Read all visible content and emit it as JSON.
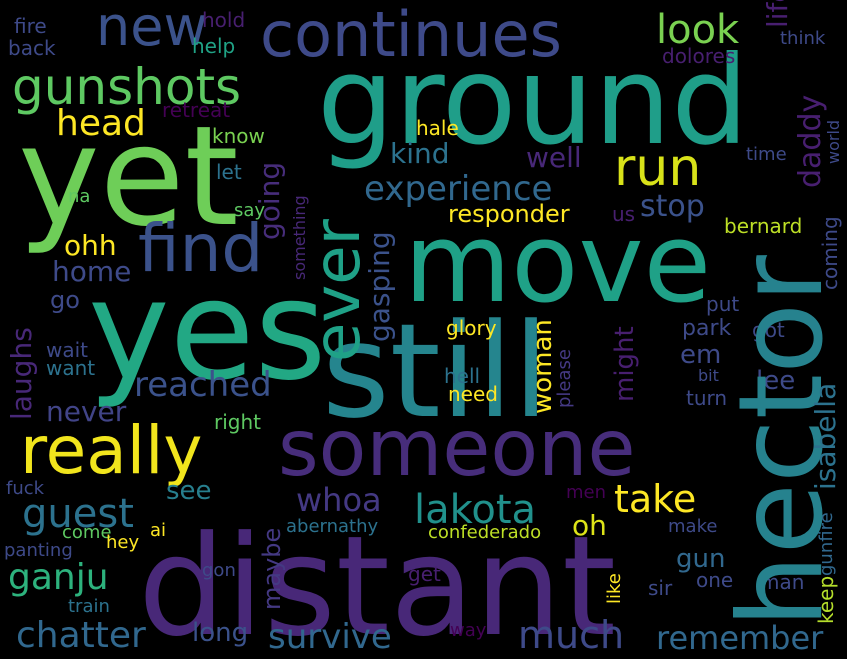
{
  "words": [
    {
      "text": "ground",
      "color": "#1f9e89"
    },
    {
      "text": "hector",
      "color": "#26828e"
    },
    {
      "text": "yet",
      "color": "#6ece58"
    },
    {
      "text": "distant",
      "color": "#482878"
    },
    {
      "text": "yes",
      "color": "#22a884"
    },
    {
      "text": "move",
      "color": "#1fa187"
    },
    {
      "text": "still",
      "color": "#25858e"
    },
    {
      "text": "someone",
      "color": "#472d7b"
    },
    {
      "text": "continues",
      "color": "#3e4a89"
    },
    {
      "text": "new",
      "color": "#3b528b"
    },
    {
      "text": "find",
      "color": "#3b528b"
    },
    {
      "text": "really",
      "color": "#f1e51d"
    },
    {
      "text": "gunshots",
      "color": "#5ec962"
    },
    {
      "text": "ever",
      "color": "#1fa187"
    },
    {
      "text": "run",
      "color": "#d8e219"
    },
    {
      "text": "look",
      "color": "#7ad151"
    },
    {
      "text": "experience",
      "color": "#31688e"
    },
    {
      "text": "head",
      "color": "#fde725"
    },
    {
      "text": "guest",
      "color": "#2c728e"
    },
    {
      "text": "lakota",
      "color": "#21918c"
    },
    {
      "text": "whoa",
      "color": "#443983"
    },
    {
      "text": "take",
      "color": "#fde725"
    },
    {
      "text": "ganju",
      "color": "#2db27d"
    },
    {
      "text": "chatter",
      "color": "#31688e"
    },
    {
      "text": "survive",
      "color": "#31688e"
    },
    {
      "text": "much",
      "color": "#3e4a89"
    },
    {
      "text": "remember",
      "color": "#31688e"
    },
    {
      "text": "reached",
      "color": "#3b528b"
    },
    {
      "text": "responder",
      "color": "#fde725"
    },
    {
      "text": "stop",
      "color": "#3b528b"
    },
    {
      "text": "gasping",
      "color": "#3b528b"
    },
    {
      "text": "kind",
      "color": "#2c728e"
    },
    {
      "text": "well",
      "color": "#482878"
    },
    {
      "text": "daddy",
      "color": "#481f70"
    },
    {
      "text": "isabella",
      "color": "#2c728e"
    },
    {
      "text": "life",
      "color": "#481f70"
    },
    {
      "text": "going",
      "color": "#472d7b"
    },
    {
      "text": "laughs",
      "color": "#482878"
    },
    {
      "text": "woman",
      "color": "#fde725"
    },
    {
      "text": "might",
      "color": "#481f70"
    },
    {
      "text": "never",
      "color": "#414487"
    },
    {
      "text": "home",
      "color": "#3e4a89"
    },
    {
      "text": "ohh",
      "color": "#fde725"
    },
    {
      "text": "oh",
      "color": "#dde318"
    },
    {
      "text": "em",
      "color": "#3e4a89"
    },
    {
      "text": "lee",
      "color": "#3e4a89"
    },
    {
      "text": "see",
      "color": "#277f8e"
    },
    {
      "text": "gun",
      "color": "#31688e"
    },
    {
      "text": "maybe",
      "color": "#443983"
    },
    {
      "text": "long",
      "color": "#3b528b"
    },
    {
      "text": "park",
      "color": "#3e4a89"
    },
    {
      "text": "bernard",
      "color": "#bddf26"
    },
    {
      "text": "coming",
      "color": "#3e4a89"
    },
    {
      "text": "gunfire",
      "color": "#31688e"
    },
    {
      "text": "keep",
      "color": "#b5de2b"
    },
    {
      "text": "go",
      "color": "#3e4a89"
    },
    {
      "text": "wait",
      "color": "#3e4a89"
    },
    {
      "text": "want",
      "color": "#2c728e"
    },
    {
      "text": "hell",
      "color": "#2c728e"
    },
    {
      "text": "need",
      "color": "#fde725"
    },
    {
      "text": "right",
      "color": "#5ec962"
    },
    {
      "text": "turn",
      "color": "#3e4a89"
    },
    {
      "text": "bit",
      "color": "#3e4a89"
    },
    {
      "text": "please",
      "color": "#443983"
    },
    {
      "text": "glory",
      "color": "#fde725"
    },
    {
      "text": "put",
      "color": "#3e4a89"
    },
    {
      "text": "got",
      "color": "#3e4a89"
    },
    {
      "text": "us",
      "color": "#481f70"
    },
    {
      "text": "let",
      "color": "#2c728e"
    },
    {
      "text": "say",
      "color": "#5ec962"
    },
    {
      "text": "na",
      "color": "#5ec962"
    },
    {
      "text": "something",
      "color": "#482878"
    },
    {
      "text": "know",
      "color": "#7ad151"
    },
    {
      "text": "hale",
      "color": "#fde725"
    },
    {
      "text": "retreat",
      "color": "#440154"
    },
    {
      "text": "help",
      "color": "#20a386"
    },
    {
      "text": "hold",
      "color": "#481f70"
    },
    {
      "text": "fire",
      "color": "#3e4a89"
    },
    {
      "text": "back",
      "color": "#3e4a89"
    },
    {
      "text": "dolores",
      "color": "#481f70"
    },
    {
      "text": "think",
      "color": "#3e4a89"
    },
    {
      "text": "time",
      "color": "#3e4a89"
    },
    {
      "text": "world",
      "color": "#3e4a89"
    },
    {
      "text": "fuck",
      "color": "#3e4a89"
    },
    {
      "text": "panting",
      "color": "#3e4a89"
    },
    {
      "text": "come",
      "color": "#5ec962"
    },
    {
      "text": "hey",
      "color": "#fde725"
    },
    {
      "text": "ai",
      "color": "#fde725"
    },
    {
      "text": "abernathy",
      "color": "#2c728e"
    },
    {
      "text": "men",
      "color": "#440154"
    },
    {
      "text": "make",
      "color": "#3e4a89"
    },
    {
      "text": "confederado",
      "color": "#bddf26"
    },
    {
      "text": "gon",
      "color": "#3e4a89"
    },
    {
      "text": "get",
      "color": "#481f70"
    },
    {
      "text": "like",
      "color": "#fde725"
    },
    {
      "text": "sir",
      "color": "#3e4a89"
    },
    {
      "text": "one",
      "color": "#3e4a89"
    },
    {
      "text": "man",
      "color": "#3e4a89"
    },
    {
      "text": "train",
      "color": "#2c728e"
    },
    {
      "text": "way",
      "color": "#440154"
    }
  ]
}
